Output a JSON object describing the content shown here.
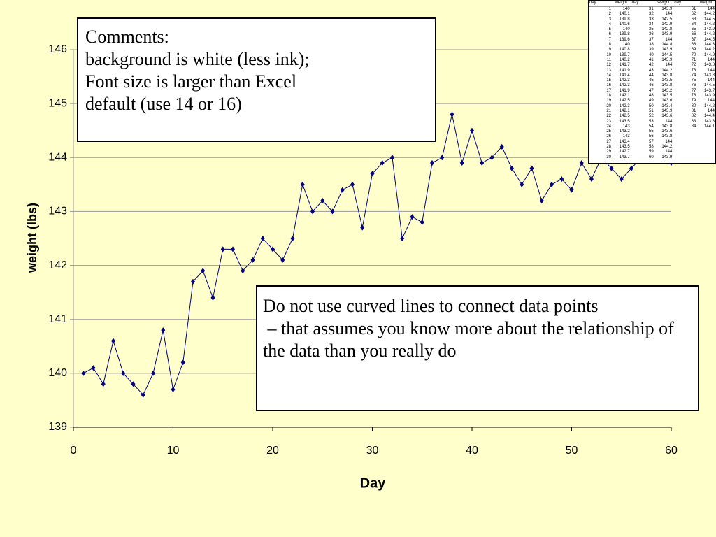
{
  "chart_data": {
    "type": "line",
    "color": "#000080",
    "x_label": "Day",
    "y_label": "weight (lbs)",
    "x": [
      1,
      2,
      3,
      4,
      5,
      6,
      7,
      8,
      9,
      10,
      11,
      12,
      13,
      14,
      15,
      16,
      17,
      18,
      19,
      20,
      21,
      22,
      23,
      24,
      25,
      26,
      27,
      28,
      29,
      30,
      31,
      32,
      33,
      34,
      35,
      36,
      37,
      38,
      39,
      40,
      41,
      42,
      43,
      44,
      45,
      46,
      47,
      48,
      49,
      50,
      51,
      52,
      53,
      54,
      55,
      56,
      57,
      58,
      59,
      60
    ],
    "values": [
      140,
      140.1,
      139.8,
      140.6,
      140,
      139.8,
      139.6,
      140,
      140.8,
      139.7,
      140.2,
      141.7,
      141.9,
      141.4,
      142.3,
      142.3,
      141.9,
      142.1,
      142.5,
      142.3,
      142.1,
      142.5,
      143.5,
      143,
      143.2,
      143,
      143.4,
      143.5,
      142.7,
      143.7,
      143.9,
      144,
      142.5,
      142.9,
      142.8,
      143.9,
      144,
      144.8,
      143.9,
      144.5,
      143.9,
      144,
      144.2,
      143.8,
      143.5,
      143.8,
      143.2,
      143.5,
      143.6,
      143.4,
      143.9,
      143.6,
      144,
      143.8,
      143.6,
      143.8,
      144,
      144.2,
      144,
      143.9
    ],
    "xlim": [
      0,
      60
    ],
    "xticks": [
      0,
      10,
      20,
      30,
      40,
      50,
      60
    ],
    "ylim": [
      139,
      146
    ],
    "yticks": [
      139,
      140,
      141,
      142,
      143,
      144,
      145,
      146
    ],
    "grid": true
  },
  "comments": {
    "lines": [
      "Comments:",
      "background is white (less ink);",
      "Font size is larger than Excel",
      "default (use 14 or 16)"
    ]
  },
  "note": {
    "paragraphs": [
      "Do not use curved lines to connect data points",
      " – that assumes you know more about the relationship of the data than you really do"
    ]
  },
  "table": {
    "headers": [
      [
        "day",
        "weight"
      ],
      [
        "day",
        "weight"
      ],
      [
        "day",
        "weight"
      ]
    ],
    "columns": [
      [
        [
          1,
          140
        ],
        [
          2,
          140.1
        ],
        [
          3,
          139.8
        ],
        [
          4,
          140.6
        ],
        [
          5,
          140
        ],
        [
          6,
          139.8
        ],
        [
          7,
          139.6
        ],
        [
          8,
          140
        ],
        [
          9,
          140.8
        ],
        [
          10,
          139.7
        ],
        [
          11,
          140.2
        ],
        [
          12,
          141.7
        ],
        [
          13,
          141.9
        ],
        [
          14,
          141.4
        ],
        [
          15,
          142.3
        ],
        [
          16,
          142.3
        ],
        [
          17,
          141.9
        ],
        [
          18,
          142.1
        ],
        [
          19,
          142.5
        ],
        [
          20,
          142.3
        ],
        [
          21,
          142.1
        ],
        [
          22,
          142.5
        ],
        [
          23,
          143.5
        ],
        [
          24,
          143
        ],
        [
          25,
          143.2
        ],
        [
          26,
          143
        ],
        [
          27,
          143.4
        ],
        [
          28,
          143.5
        ],
        [
          29,
          142.7
        ],
        [
          30,
          143.7
        ]
      ],
      [
        [
          31,
          143.9
        ],
        [
          32,
          144
        ],
        [
          33,
          142.5
        ],
        [
          34,
          142.9
        ],
        [
          35,
          142.8
        ],
        [
          36,
          143.9
        ],
        [
          37,
          144
        ],
        [
          38,
          144.8
        ],
        [
          39,
          143.9
        ],
        [
          40,
          144.5
        ],
        [
          41,
          143.9
        ],
        [
          42,
          144
        ],
        [
          43,
          144.2
        ],
        [
          44,
          143.8
        ],
        [
          45,
          143.5
        ],
        [
          46,
          143.8
        ],
        [
          47,
          143.2
        ],
        [
          48,
          143.5
        ],
        [
          49,
          143.6
        ],
        [
          50,
          143.4
        ],
        [
          51,
          143.9
        ],
        [
          52,
          143.6
        ],
        [
          53,
          144
        ],
        [
          54,
          143.8
        ],
        [
          55,
          143.6
        ],
        [
          56,
          143.8
        ],
        [
          57,
          144
        ],
        [
          58,
          144.2
        ],
        [
          59,
          144
        ],
        [
          60,
          143.9
        ]
      ],
      [
        [
          61,
          144
        ],
        [
          62,
          144.2
        ],
        [
          63,
          144.5
        ],
        [
          64,
          144.2
        ],
        [
          65,
          143.9
        ],
        [
          66,
          144.2
        ],
        [
          67,
          144.5
        ],
        [
          68,
          144.3
        ],
        [
          69,
          144.2
        ],
        [
          70,
          144.9
        ],
        [
          71,
          144
        ],
        [
          72,
          143.8
        ],
        [
          73,
          144
        ],
        [
          74,
          143.8
        ],
        [
          75,
          144
        ],
        [
          76,
          144.5
        ],
        [
          77,
          143.7
        ],
        [
          78,
          143.9
        ],
        [
          79,
          144
        ],
        [
          80,
          144.2
        ],
        [
          81,
          144
        ],
        [
          82,
          144.4
        ],
        [
          83,
          143.8
        ],
        [
          84,
          144.1
        ]
      ]
    ]
  }
}
